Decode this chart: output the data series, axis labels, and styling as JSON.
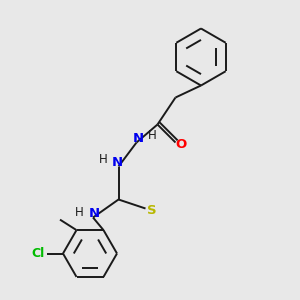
{
  "bg_color": "#e8e8e8",
  "bond_color": "#1a1a1a",
  "atom_colors": {
    "O": "#ff0000",
    "N": "#0000ee",
    "S": "#b8b800",
    "Cl": "#00bb00",
    "C": "#1a1a1a",
    "H": "#1a1a1a"
  },
  "figsize": [
    3.0,
    3.0
  ],
  "dpi": 100,
  "lw": 1.4
}
